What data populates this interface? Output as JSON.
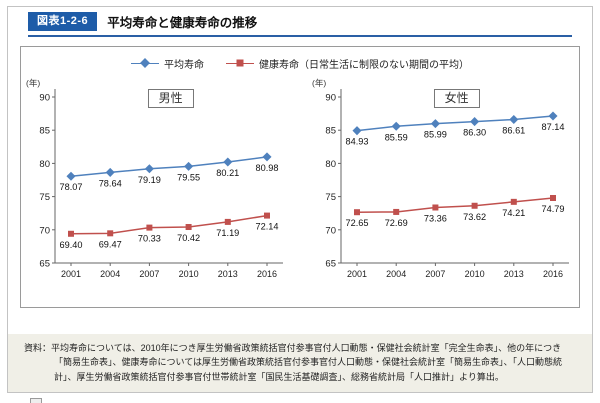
{
  "header": {
    "figure_label": "図表1-2-6",
    "title": "平均寿命と健康寿命の推移"
  },
  "legend": [
    {
      "label": "平均寿命",
      "color": "#4f81bd",
      "marker": "diamond"
    },
    {
      "label": "健康寿命（日常生活に制限のない期間の平均）",
      "color": "#c0504d",
      "marker": "square"
    }
  ],
  "unit_label": "(年)",
  "chart_data": [
    {
      "type": "line",
      "title": "男性",
      "categories": [
        "2001",
        "2004",
        "2007",
        "2010",
        "2013",
        "2016"
      ],
      "ylim": [
        65,
        90
      ],
      "yticks": [
        65,
        70,
        75,
        80,
        85,
        90
      ],
      "series": [
        {
          "name": "平均寿命",
          "color": "#4f81bd",
          "marker": "diamond",
          "values": [
            78.07,
            78.64,
            79.19,
            79.55,
            80.21,
            80.98
          ],
          "labels": [
            "78.07",
            "78.64",
            "79.19",
            "79.55",
            "80.21",
            "80.98"
          ]
        },
        {
          "name": "健康寿命",
          "color": "#c0504d",
          "marker": "square",
          "values": [
            69.4,
            69.47,
            70.33,
            70.42,
            71.19,
            72.14
          ],
          "labels": [
            "69.40",
            "69.47",
            "70.33",
            "70.42",
            "71.19",
            "72.14"
          ]
        }
      ]
    },
    {
      "type": "line",
      "title": "女性",
      "categories": [
        "2001",
        "2004",
        "2007",
        "2010",
        "2013",
        "2016"
      ],
      "ylim": [
        65,
        90
      ],
      "yticks": [
        65,
        70,
        75,
        80,
        85,
        90
      ],
      "series": [
        {
          "name": "平均寿命",
          "color": "#4f81bd",
          "marker": "diamond",
          "values": [
            84.93,
            85.59,
            85.99,
            86.3,
            86.61,
            87.14
          ],
          "labels": [
            "84.93",
            "85.59",
            "85.99",
            "86.30",
            "86.61",
            "87.14"
          ]
        },
        {
          "name": "健康寿命",
          "color": "#c0504d",
          "marker": "square",
          "values": [
            72.65,
            72.69,
            73.36,
            73.62,
            74.21,
            74.79
          ],
          "labels": [
            "72.65",
            "72.69",
            "73.36",
            "73.62",
            "74.21",
            "74.79"
          ]
        }
      ]
    }
  ],
  "source": {
    "label": "資料：",
    "text": "平均寿命については、2010年につき厚生労働省政策統括官付参事官付人口動態・保健社会統計室「完全生命表」、他の年につき「簡易生命表」、健康寿命については厚生労働省政策統括官付参事官付人口動態・保健社会統計室「簡易生命表」、「人口動態統計」、厚生労働省政策統括官付参事官付世帯統計室「国民生活基礎調査」、総務省統計局「人口推計」より算出。"
  },
  "colors": {
    "accent_blue": "#1e5ca8",
    "series_blue": "#4f81bd",
    "series_red": "#c0504d",
    "footer_bg": "#f0efe7"
  }
}
